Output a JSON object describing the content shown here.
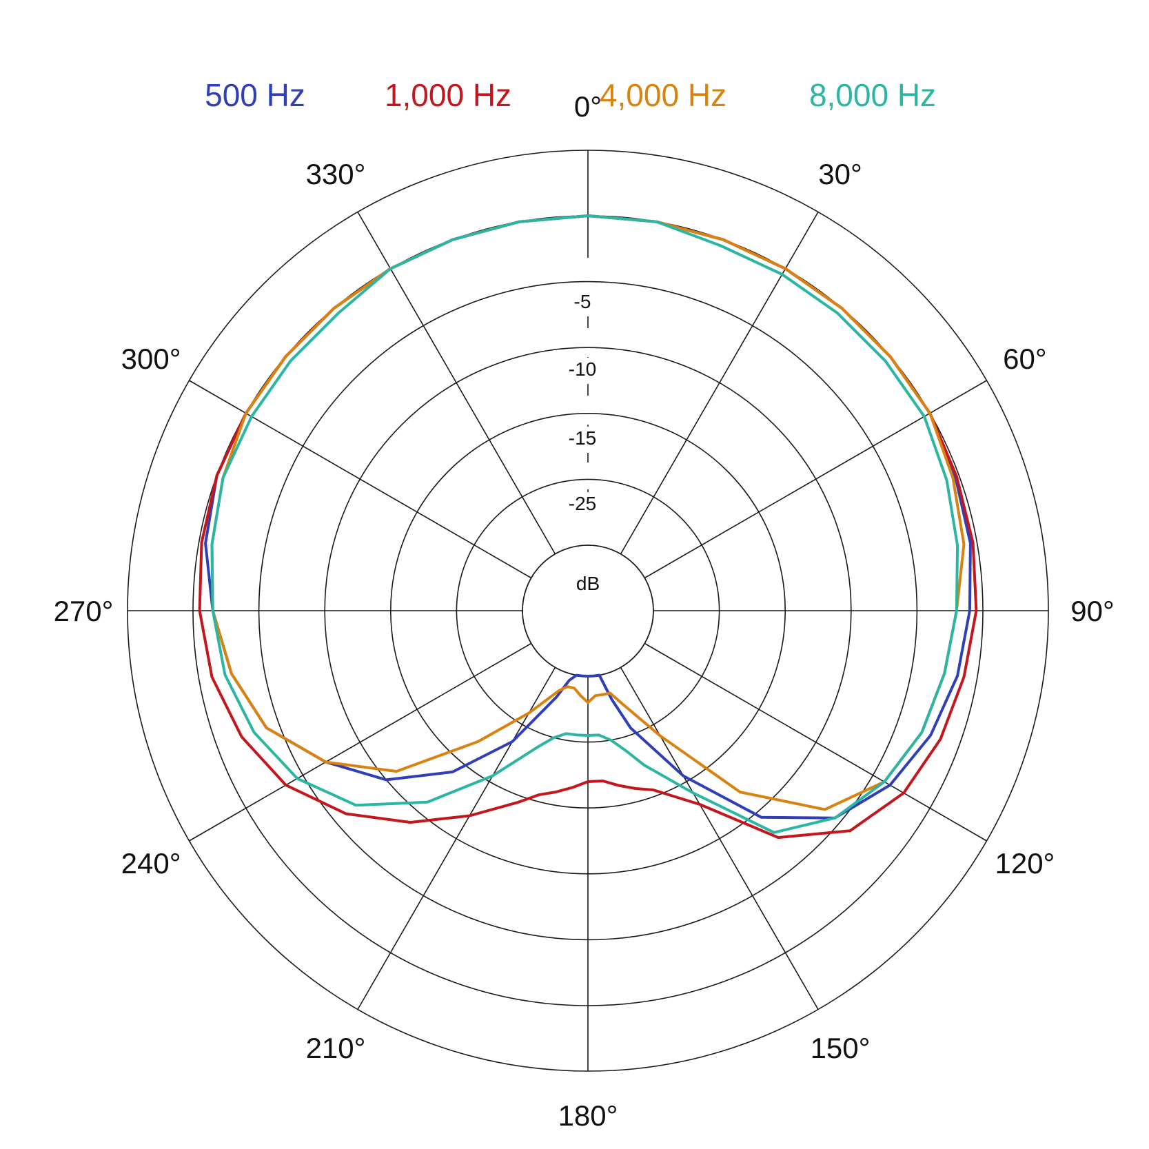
{
  "chart_data": {
    "type": "polar-line",
    "unit": "dB",
    "ring_levels": [
      0,
      -5,
      -10,
      -15,
      -20,
      -25
    ],
    "ring_labels": [
      "-5",
      "-10",
      "-15",
      "-25"
    ],
    "angle_labels": [
      "0°",
      "30°",
      "60°",
      "90°",
      "120°",
      "150°",
      "180°",
      "210°",
      "240°",
      "270°",
      "300°",
      "330°"
    ],
    "grid": true,
    "legend_position": "top",
    "angles_deg": [
      0,
      10,
      20,
      30,
      40,
      50,
      60,
      70,
      80,
      90,
      100,
      110,
      120,
      130,
      140,
      150,
      160,
      165,
      170,
      175,
      180,
      185,
      190,
      195,
      200,
      210,
      220,
      230,
      240,
      250,
      260,
      270,
      280,
      290,
      300,
      310,
      320,
      330,
      340,
      350
    ],
    "series": [
      {
        "name": "500 Hz",
        "color": "#2f3fb8",
        "values": [
          0,
          0,
          0,
          0,
          0,
          0,
          0,
          -0.3,
          -0.5,
          -1,
          -1.5,
          -2.3,
          -3.5,
          -5.5,
          -9.5,
          -15.5,
          -20.5,
          -23,
          -25.5,
          -27,
          -26,
          -27,
          -25.5,
          -24.5,
          -23,
          -18.5,
          -14,
          -10,
          -7,
          -4,
          -2.5,
          -1.5,
          -0.5,
          0,
          0,
          0,
          0,
          0,
          0,
          0
        ]
      },
      {
        "name": "1,000 Hz",
        "color": "#c4161c",
        "values": [
          0,
          0,
          0,
          0,
          0,
          0,
          0,
          -0.2,
          -0.3,
          -0.5,
          -1,
          -1.5,
          -2.3,
          -4,
          -7.5,
          -13,
          -15.5,
          -16,
          -16.5,
          -17,
          -17,
          -16.5,
          -16,
          -15.5,
          -14.5,
          -12,
          -9,
          -6,
          -3.5,
          -2,
          -1,
          -0.5,
          -0.2,
          0,
          0,
          0,
          0,
          0,
          0,
          0
        ]
      },
      {
        "name": "4,000 Hz",
        "color": "#d9820f",
        "values": [
          0,
          0,
          0,
          0,
          0,
          0,
          0,
          -0.5,
          -1,
          -2,
          -2.5,
          -3,
          -4,
          -6.5,
          -12,
          -19,
          -22.5,
          -23.5,
          -23.5,
          -23.5,
          -23,
          -23.5,
          -24,
          -24,
          -23.5,
          -21,
          -17,
          -11,
          -7,
          -4,
          -2.5,
          -1.5,
          -1,
          -0.5,
          0,
          0,
          0,
          0,
          0,
          0
        ]
      },
      {
        "name": "8,000 Hz",
        "color": "#2bb5a3",
        "values": [
          0,
          0,
          -0.5,
          -0.5,
          -0.5,
          -0.5,
          -0.5,
          -1,
          -1.5,
          -2,
          -2.5,
          -3,
          -4,
          -5.5,
          -8,
          -14,
          -17.5,
          -19,
          -20,
          -20.5,
          -20.5,
          -20.5,
          -20.5,
          -20,
          -19,
          -15.5,
          -11,
          -7,
          -4.5,
          -3,
          -2,
          -1.5,
          -1,
          -0.5,
          -0.5,
          -0.5,
          -0.5,
          0,
          0,
          0
        ]
      }
    ]
  }
}
